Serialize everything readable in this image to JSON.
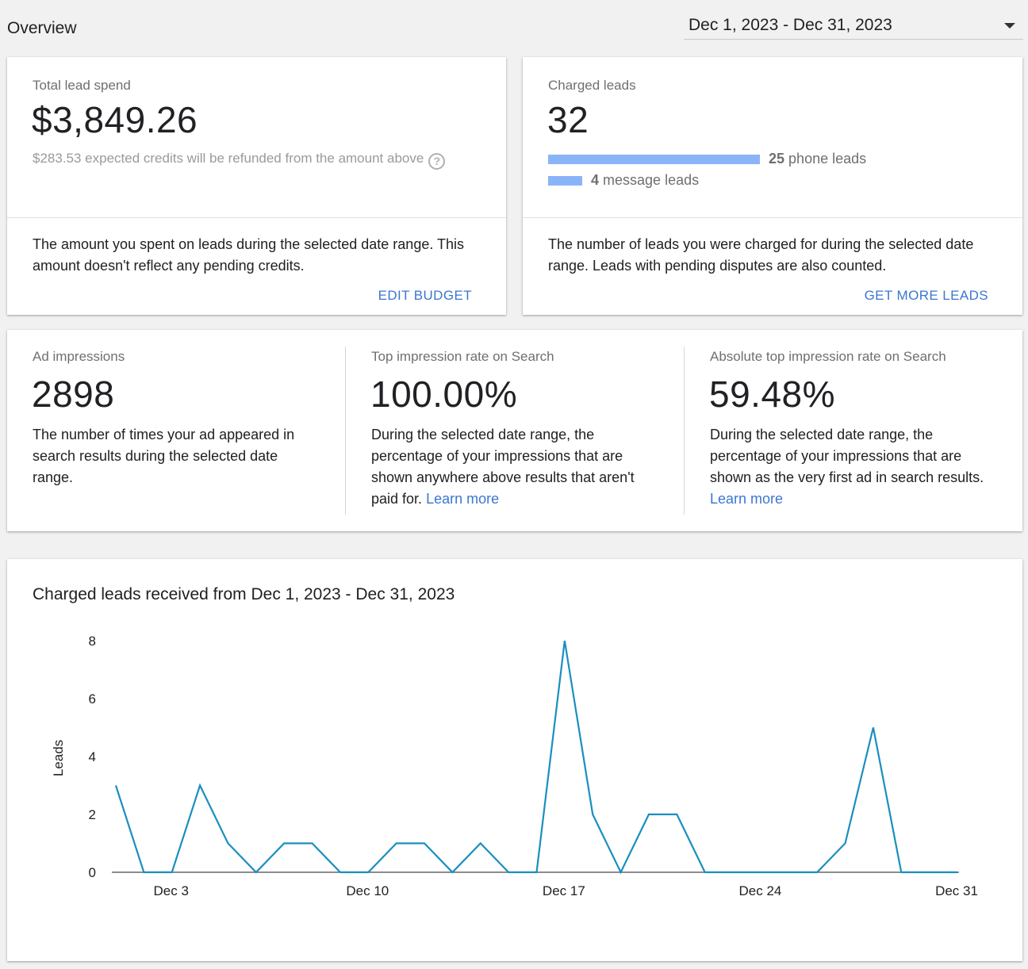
{
  "header": {
    "title": "Overview",
    "date_range": "Dec 1, 2023 - Dec 31, 2023"
  },
  "lead_spend": {
    "label": "Total lead spend",
    "value": "$3,849.26",
    "refund_note": "$283.53 expected credits will be refunded from the amount above",
    "help_icon": "?",
    "description": "The amount you spent on leads during the selected date range. This amount doesn't reflect any pending credits.",
    "action": "EDIT BUDGET"
  },
  "charged_leads": {
    "label": "Charged leads",
    "value": "32",
    "phone_count": "25",
    "phone_label": "phone leads",
    "message_count": "4",
    "message_label": "message leads",
    "description": "The number of leads you were charged for during the selected date range. Leads with pending disputes are also counted.",
    "action": "GET MORE LEADS"
  },
  "metrics": [
    {
      "label": "Ad impressions",
      "value": "2898",
      "description": "The number of times your ad appeared in search results during the selected date range.",
      "link": ""
    },
    {
      "label": "Top impression rate on Search",
      "value": "100.00%",
      "description": "During the selected date range, the percentage of your impressions that are shown anywhere above results that aren't paid for.",
      "link": "Learn more"
    },
    {
      "label": "Absolute top impression rate on Search",
      "value": "59.48%",
      "description": "During the selected date range, the percentage of your impressions that are shown as the very first ad in search results.",
      "link": "Learn more"
    }
  ],
  "chart": {
    "title": "Charged leads received from Dec 1, 2023 - Dec 31, 2023"
  },
  "chart_data": {
    "type": "line",
    "title": "Charged leads received from Dec 1, 2023 - Dec 31, 2023",
    "xlabel": "",
    "ylabel": "Leads",
    "x": [
      1,
      2,
      3,
      4,
      5,
      6,
      7,
      8,
      9,
      10,
      11,
      12,
      13,
      14,
      15,
      16,
      17,
      18,
      19,
      20,
      21,
      22,
      23,
      24,
      25,
      26,
      27,
      28,
      29,
      30,
      31
    ],
    "values": [
      3,
      0,
      0,
      3,
      1,
      0,
      1,
      1,
      0,
      0,
      1,
      1,
      0,
      1,
      0,
      0,
      8,
      2,
      0,
      2,
      2,
      0,
      0,
      0,
      0,
      0,
      1,
      5,
      0,
      0,
      0
    ],
    "x_tick_labels": [
      "Dec 3",
      "Dec 10",
      "Dec 17",
      "Dec 24",
      "Dec 31"
    ],
    "x_tick_positions": [
      3,
      10,
      17,
      24,
      31
    ],
    "y_ticks": [
      0,
      2,
      4,
      6,
      8
    ],
    "xlim": [
      1,
      31
    ],
    "ylim": [
      0,
      8
    ],
    "grid": false,
    "line_color": "#1a8fbf"
  }
}
